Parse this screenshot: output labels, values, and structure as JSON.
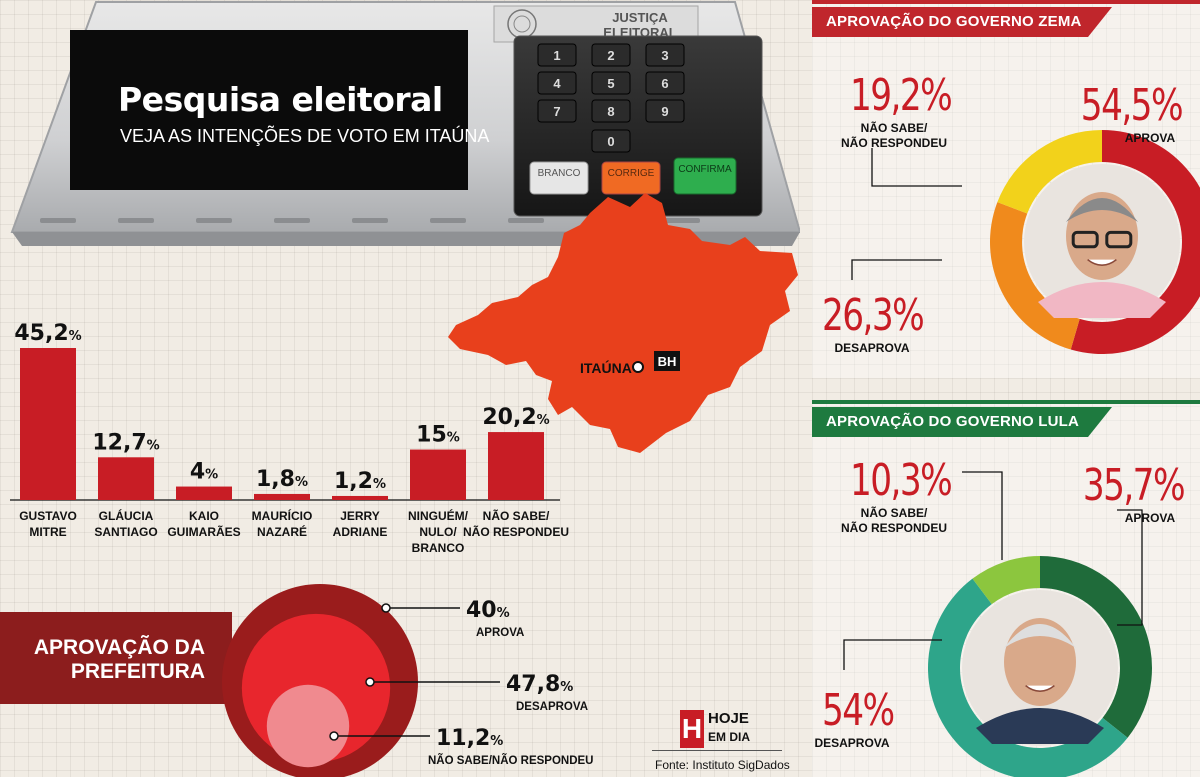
{
  "headline": {
    "title": "Pesquisa eleitoral",
    "subtitle": "VEJA AS INTENÇÕES DE VOTO EM ITAÚNA"
  },
  "machine": {
    "brand_line1": "JUSTIÇA",
    "brand_line2": "ELEITORAL",
    "keys": [
      "1",
      "2",
      "3",
      "4",
      "5",
      "6",
      "7",
      "8",
      "9",
      "0"
    ],
    "btn_branco": "BRANCO",
    "btn_corrige": "CORRIGE",
    "btn_confirma": "CONFIRMA"
  },
  "map": {
    "city_label": "ITAÚNA",
    "capital_label": "BH",
    "color": "#e8401c"
  },
  "chart_data": [
    {
      "type": "bar",
      "categories": [
        "GUSTAVO\nMITRE",
        "GLÁUCIA\nSANTIAGO",
        "KAIO\nGUIMARÃES",
        "MAURÍCIO\nNAZARÉ",
        "JERRY\nADRIANE",
        "NINGUÉM/\nNULO/\nBRANCO",
        "NÃO SABE/\nNÃO RESPONDEU"
      ],
      "values": [
        45.2,
        12.7,
        4,
        1.8,
        1.2,
        15,
        20.2
      ],
      "labels": [
        "45,2",
        "12,7",
        "4",
        "1,8",
        "1,2",
        "15",
        "20,2"
      ],
      "unit": "%",
      "color": "#c81d25"
    },
    {
      "type": "pie",
      "title": "APROVAÇÃO DA\nPREFEITURA",
      "slices": [
        {
          "label": "APROVA",
          "value": 40,
          "display": "40"
        },
        {
          "label": "DESAPROVA",
          "value": 47.8,
          "display": "47,8"
        },
        {
          "label": "NÃO SABE/NÃO RESPONDEU",
          "value": 11.2,
          "display": "11,2"
        }
      ],
      "unit": "%",
      "colors": [
        "#9a1c1c",
        "#e8262d",
        "#f08a8f"
      ]
    },
    {
      "type": "pie",
      "title": "APROVAÇÃO DO GOVERNO ZEMA",
      "slices": [
        {
          "label": "APROVA",
          "value": 54.5,
          "display": "54,5%"
        },
        {
          "label": "DESAPROVA",
          "value": 26.3,
          "display": "26,3%"
        },
        {
          "label": "NÃO SABE/\nNÃO RESPONDEU",
          "value": 19.2,
          "display": "19,2%"
        }
      ],
      "colors": [
        "#c81d25",
        "#f08a1c",
        "#f2d21b"
      ],
      "header_color": "#c0262c"
    },
    {
      "type": "pie",
      "title": "APROVAÇÃO DO GOVERNO LULA",
      "slices": [
        {
          "label": "APROVA",
          "value": 35.7,
          "display": "35,7%"
        },
        {
          "label": "DESAPROVA",
          "value": 54,
          "display": "54%"
        },
        {
          "label": "NÃO SABE/\nNÃO RESPONDEU",
          "value": 10.3,
          "display": "10,3%"
        }
      ],
      "colors": [
        "#1f6b3a",
        "#2ea58a",
        "#8cc63e"
      ],
      "header_color": "#1e7a3f"
    }
  ],
  "logo": {
    "line1": "HOJE",
    "line2": "EM DIA",
    "letter": "H"
  },
  "source": "Fonte: Instituto SigDados"
}
